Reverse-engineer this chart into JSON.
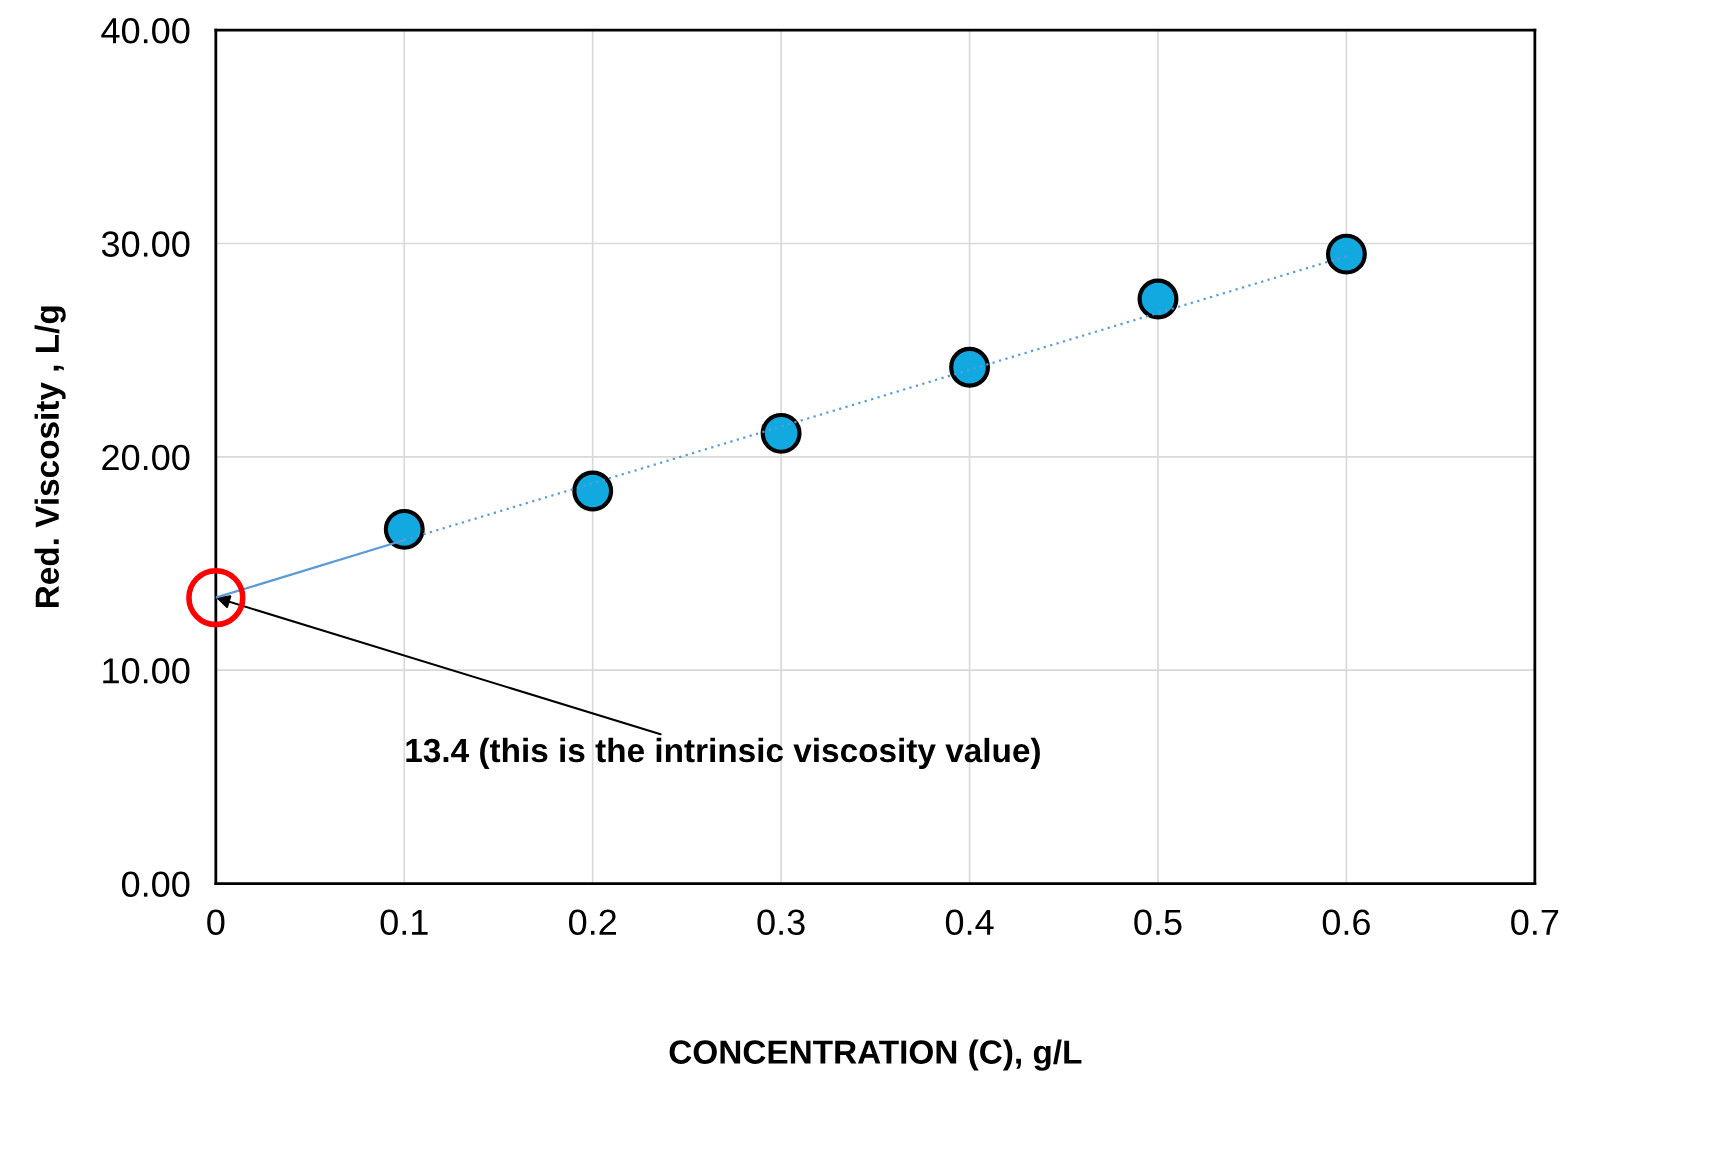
{
  "chart_data": {
    "type": "scatter",
    "xlabel": "CONCENTRATION (C), g/L",
    "ylabel": "Red. Viscosity , L/g",
    "xlim": [
      0,
      0.7
    ],
    "xticks": [
      0,
      0.1,
      0.2,
      0.3,
      0.4,
      0.5,
      0.6,
      0.7
    ],
    "ylim": [
      0,
      40
    ],
    "yticks": [
      {
        "value": 0,
        "label": "0.00"
      },
      {
        "value": 10,
        "label": "10.00"
      },
      {
        "value": 20,
        "label": "20.00"
      },
      {
        "value": 30,
        "label": "30.00"
      },
      {
        "value": 40,
        "label": "40.00"
      }
    ],
    "grid": true,
    "legend": false,
    "series": [
      {
        "type": "line",
        "color": "#5b9bd5",
        "x": [
          0,
          0.1
        ],
        "values": [
          13.4,
          16.1
        ],
        "line_style": "solid"
      },
      {
        "type": "line",
        "color": "#5b9bd5",
        "x": [
          0.1,
          0.6
        ],
        "values": [
          16.1,
          29.4
        ],
        "line_style": "dotted"
      },
      {
        "color": "#12a9e1",
        "marker": "circle",
        "x": [
          0.1,
          0.2,
          0.3,
          0.4,
          0.5,
          0.6
        ],
        "values": [
          16.6,
          18.4,
          21.1,
          24.2,
          27.4,
          29.5
        ]
      }
    ],
    "annotations": [
      {
        "text": "13.4 (this is the intrinsic viscosity value)",
        "x": 0,
        "y": 13.4
      }
    ]
  }
}
